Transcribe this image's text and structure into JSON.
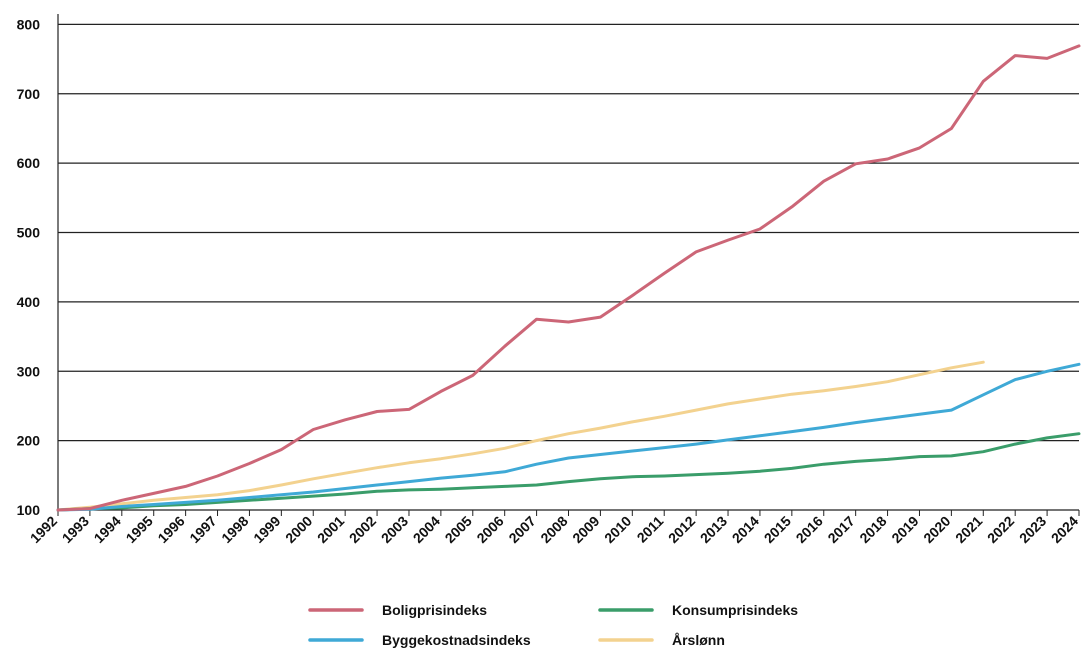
{
  "chart_data": {
    "type": "line",
    "x": [
      1992,
      1993,
      1994,
      1995,
      1996,
      1997,
      1998,
      1999,
      2000,
      2001,
      2002,
      2003,
      2004,
      2005,
      2006,
      2007,
      2008,
      2009,
      2010,
      2011,
      2012,
      2013,
      2014,
      2015,
      2016,
      2017,
      2018,
      2019,
      2020,
      2021,
      2022,
      2023,
      2024
    ],
    "x_tick_labels": [
      "1992",
      "1993",
      "1994",
      "1995",
      "1996",
      "1997",
      "1998",
      "1999",
      "2000",
      "2001",
      "2002",
      "2003",
      "2004",
      "2005",
      "2006",
      "2007",
      "2008",
      "2009",
      "2010",
      "2011",
      "2012",
      "2013",
      "2014",
      "2015",
      "2016",
      "2017",
      "2018",
      "2019",
      "2020",
      "2021",
      "2022",
      "2023",
      "2024"
    ],
    "y_ticks": [
      100,
      200,
      300,
      400,
      500,
      600,
      700,
      800
    ],
    "y_tick_labels": [
      "100",
      "200",
      "300",
      "400",
      "500",
      "600",
      "700",
      "800"
    ],
    "ylim": [
      100,
      815
    ],
    "xlim": [
      1992,
      2024
    ],
    "grid": "horizontal",
    "legend_position": "bottom",
    "series": [
      {
        "name": "Boligprisindeks",
        "color": "#cc6677",
        "values": [
          100,
          102,
          114,
          124,
          134,
          149,
          167,
          187,
          216,
          230,
          242,
          245,
          271,
          294,
          336,
          375,
          371,
          378,
          409,
          441,
          472,
          489,
          505,
          537,
          574,
          599,
          606,
          622,
          650,
          718,
          755,
          751,
          769
        ]
      },
      {
        "name": "Byggekostnadsindeks",
        "color": "#3fa9d6",
        "values": [
          100,
          101,
          105,
          108,
          111,
          114,
          118,
          122,
          126,
          131,
          136,
          141,
          146,
          150,
          155,
          166,
          175,
          180,
          185,
          190,
          195,
          201,
          207,
          213,
          219,
          226,
          232,
          238,
          244,
          266,
          288,
          300,
          310
        ]
      },
      {
        "name": "Konsumprisindeks",
        "color": "#3a9d6a",
        "values": [
          100,
          102,
          103,
          106,
          108,
          111,
          114,
          117,
          120,
          123,
          127,
          129,
          130,
          132,
          134,
          136,
          141,
          145,
          148,
          149,
          151,
          153,
          156,
          160,
          166,
          170,
          173,
          177,
          178,
          184,
          195,
          204,
          210
        ]
      },
      {
        "name": "Årslønn",
        "color": "#f3d28f",
        "values": [
          100,
          104,
          109,
          114,
          118,
          122,
          128,
          136,
          145,
          153,
          161,
          168,
          174,
          181,
          189,
          200,
          210,
          218,
          227,
          235,
          244,
          253,
          260,
          267,
          272,
          278,
          285,
          295,
          305,
          313,
          null,
          null,
          null
        ]
      }
    ]
  }
}
